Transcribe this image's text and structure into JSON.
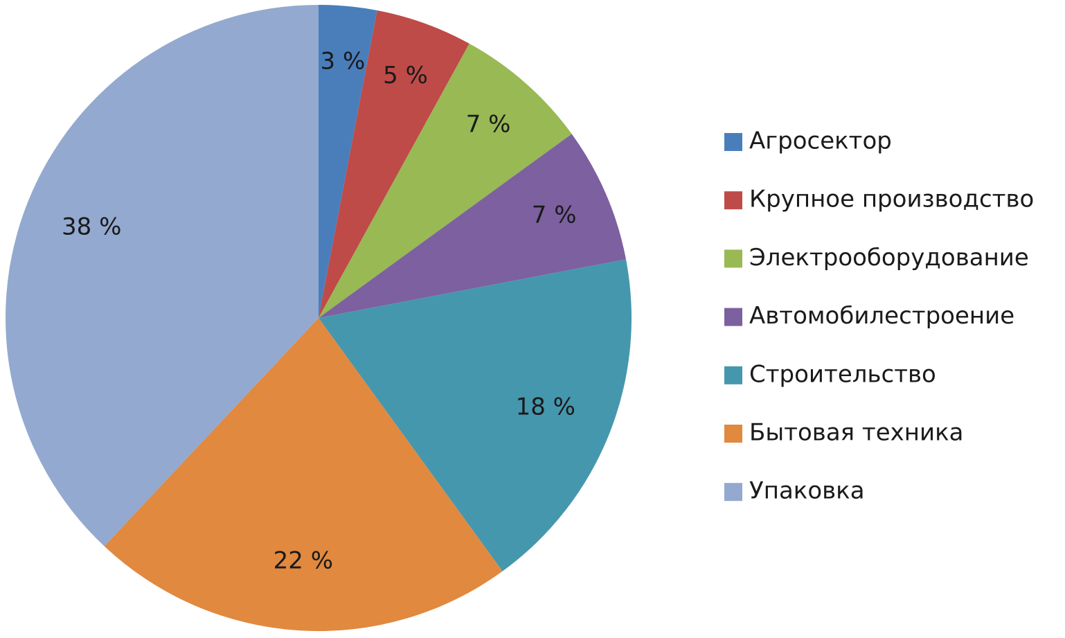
{
  "chart_data": {
    "type": "pie",
    "categories": [
      "Агросектор",
      "Крупное производство",
      "Электрооборудование",
      "Автомобилестроение",
      "Строительство",
      "Бытовая техника",
      "Упаковка"
    ],
    "values": [
      3,
      5,
      7,
      7,
      18,
      22,
      38
    ],
    "value_labels": [
      "3 %",
      "5 %",
      "7 %",
      "7 %",
      "18 %",
      "22 %",
      "38 %"
    ],
    "colors": [
      "#4a7ebb",
      "#be4b48",
      "#98b954",
      "#7d60a0",
      "#4597ad",
      "#e0893f",
      "#93a9cf"
    ],
    "legend": "right"
  }
}
